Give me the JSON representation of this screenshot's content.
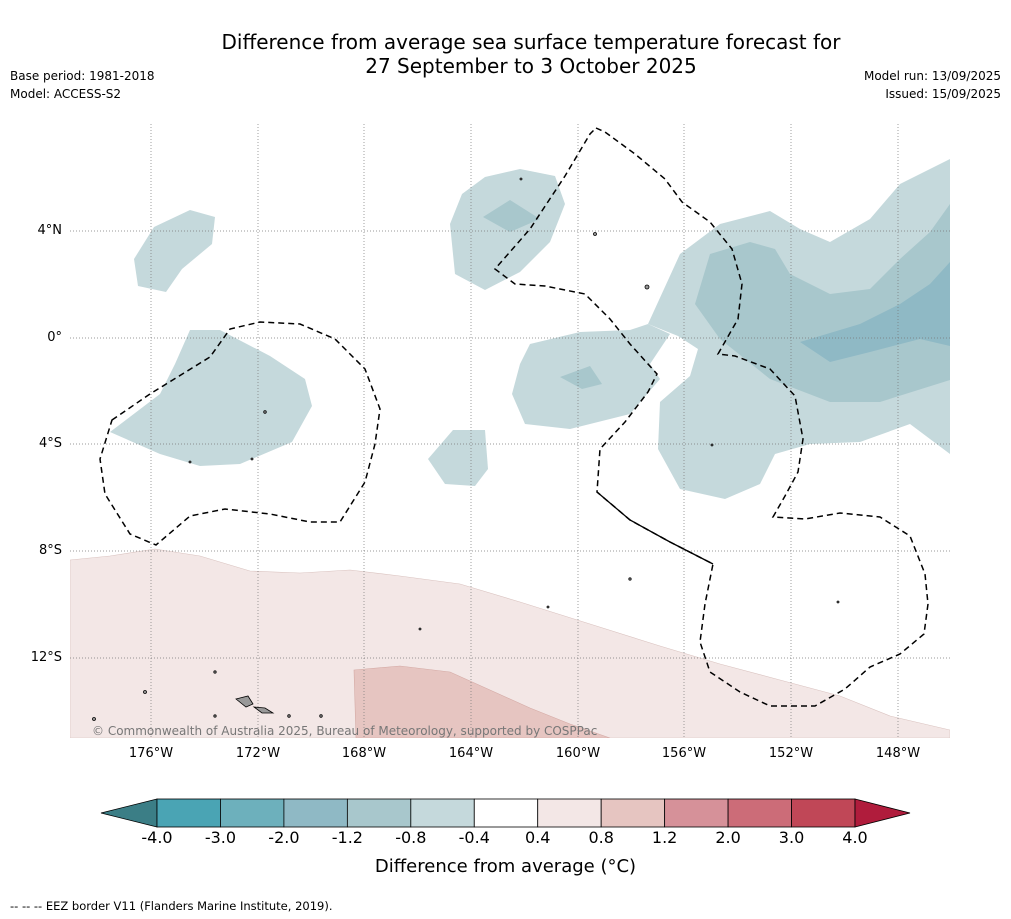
{
  "title": {
    "line1": "Difference from average sea surface temperature forecast for",
    "line2": "27 September to 3 October 2025"
  },
  "meta": {
    "base_period": "Base period: 1981-2018",
    "model": "Model: ACCESS-S2",
    "model_run": "Model run: 13/09/2025",
    "issued": "Issued: 15/09/2025"
  },
  "map": {
    "lat_labels": [
      "4°N",
      "0°",
      "4°S",
      "8°S",
      "12°S"
    ],
    "lon_labels": [
      "176°W",
      "172°W",
      "168°W",
      "164°W",
      "160°W",
      "156°W",
      "152°W",
      "148°W"
    ],
    "copyright": "© Commonwealth of Australia 2025, Bureau of Meteorology, supported by COSPPac"
  },
  "colorbar": {
    "title": "Difference from average (°C)",
    "ticks": [
      "-4.0",
      "-3.0",
      "-2.0",
      "-1.2",
      "-0.8",
      "-0.4",
      "0.4",
      "0.8",
      "1.2",
      "2.0",
      "3.0",
      "4.0"
    ],
    "colors": [
      "#4aa4b4",
      "#6db0bc",
      "#8fb9c5",
      "#a8c7cc",
      "#c5d9dc",
      "#ffffff",
      "#f3e7e6",
      "#e6c5c1",
      "#d69199",
      "#cc6c78",
      "#c04757"
    ],
    "under_color": "#3b7e86",
    "over_color": "#b01c3c"
  },
  "footer": "-- -- -- EEZ border V11 (Flanders Marine Institute, 2019)."
}
